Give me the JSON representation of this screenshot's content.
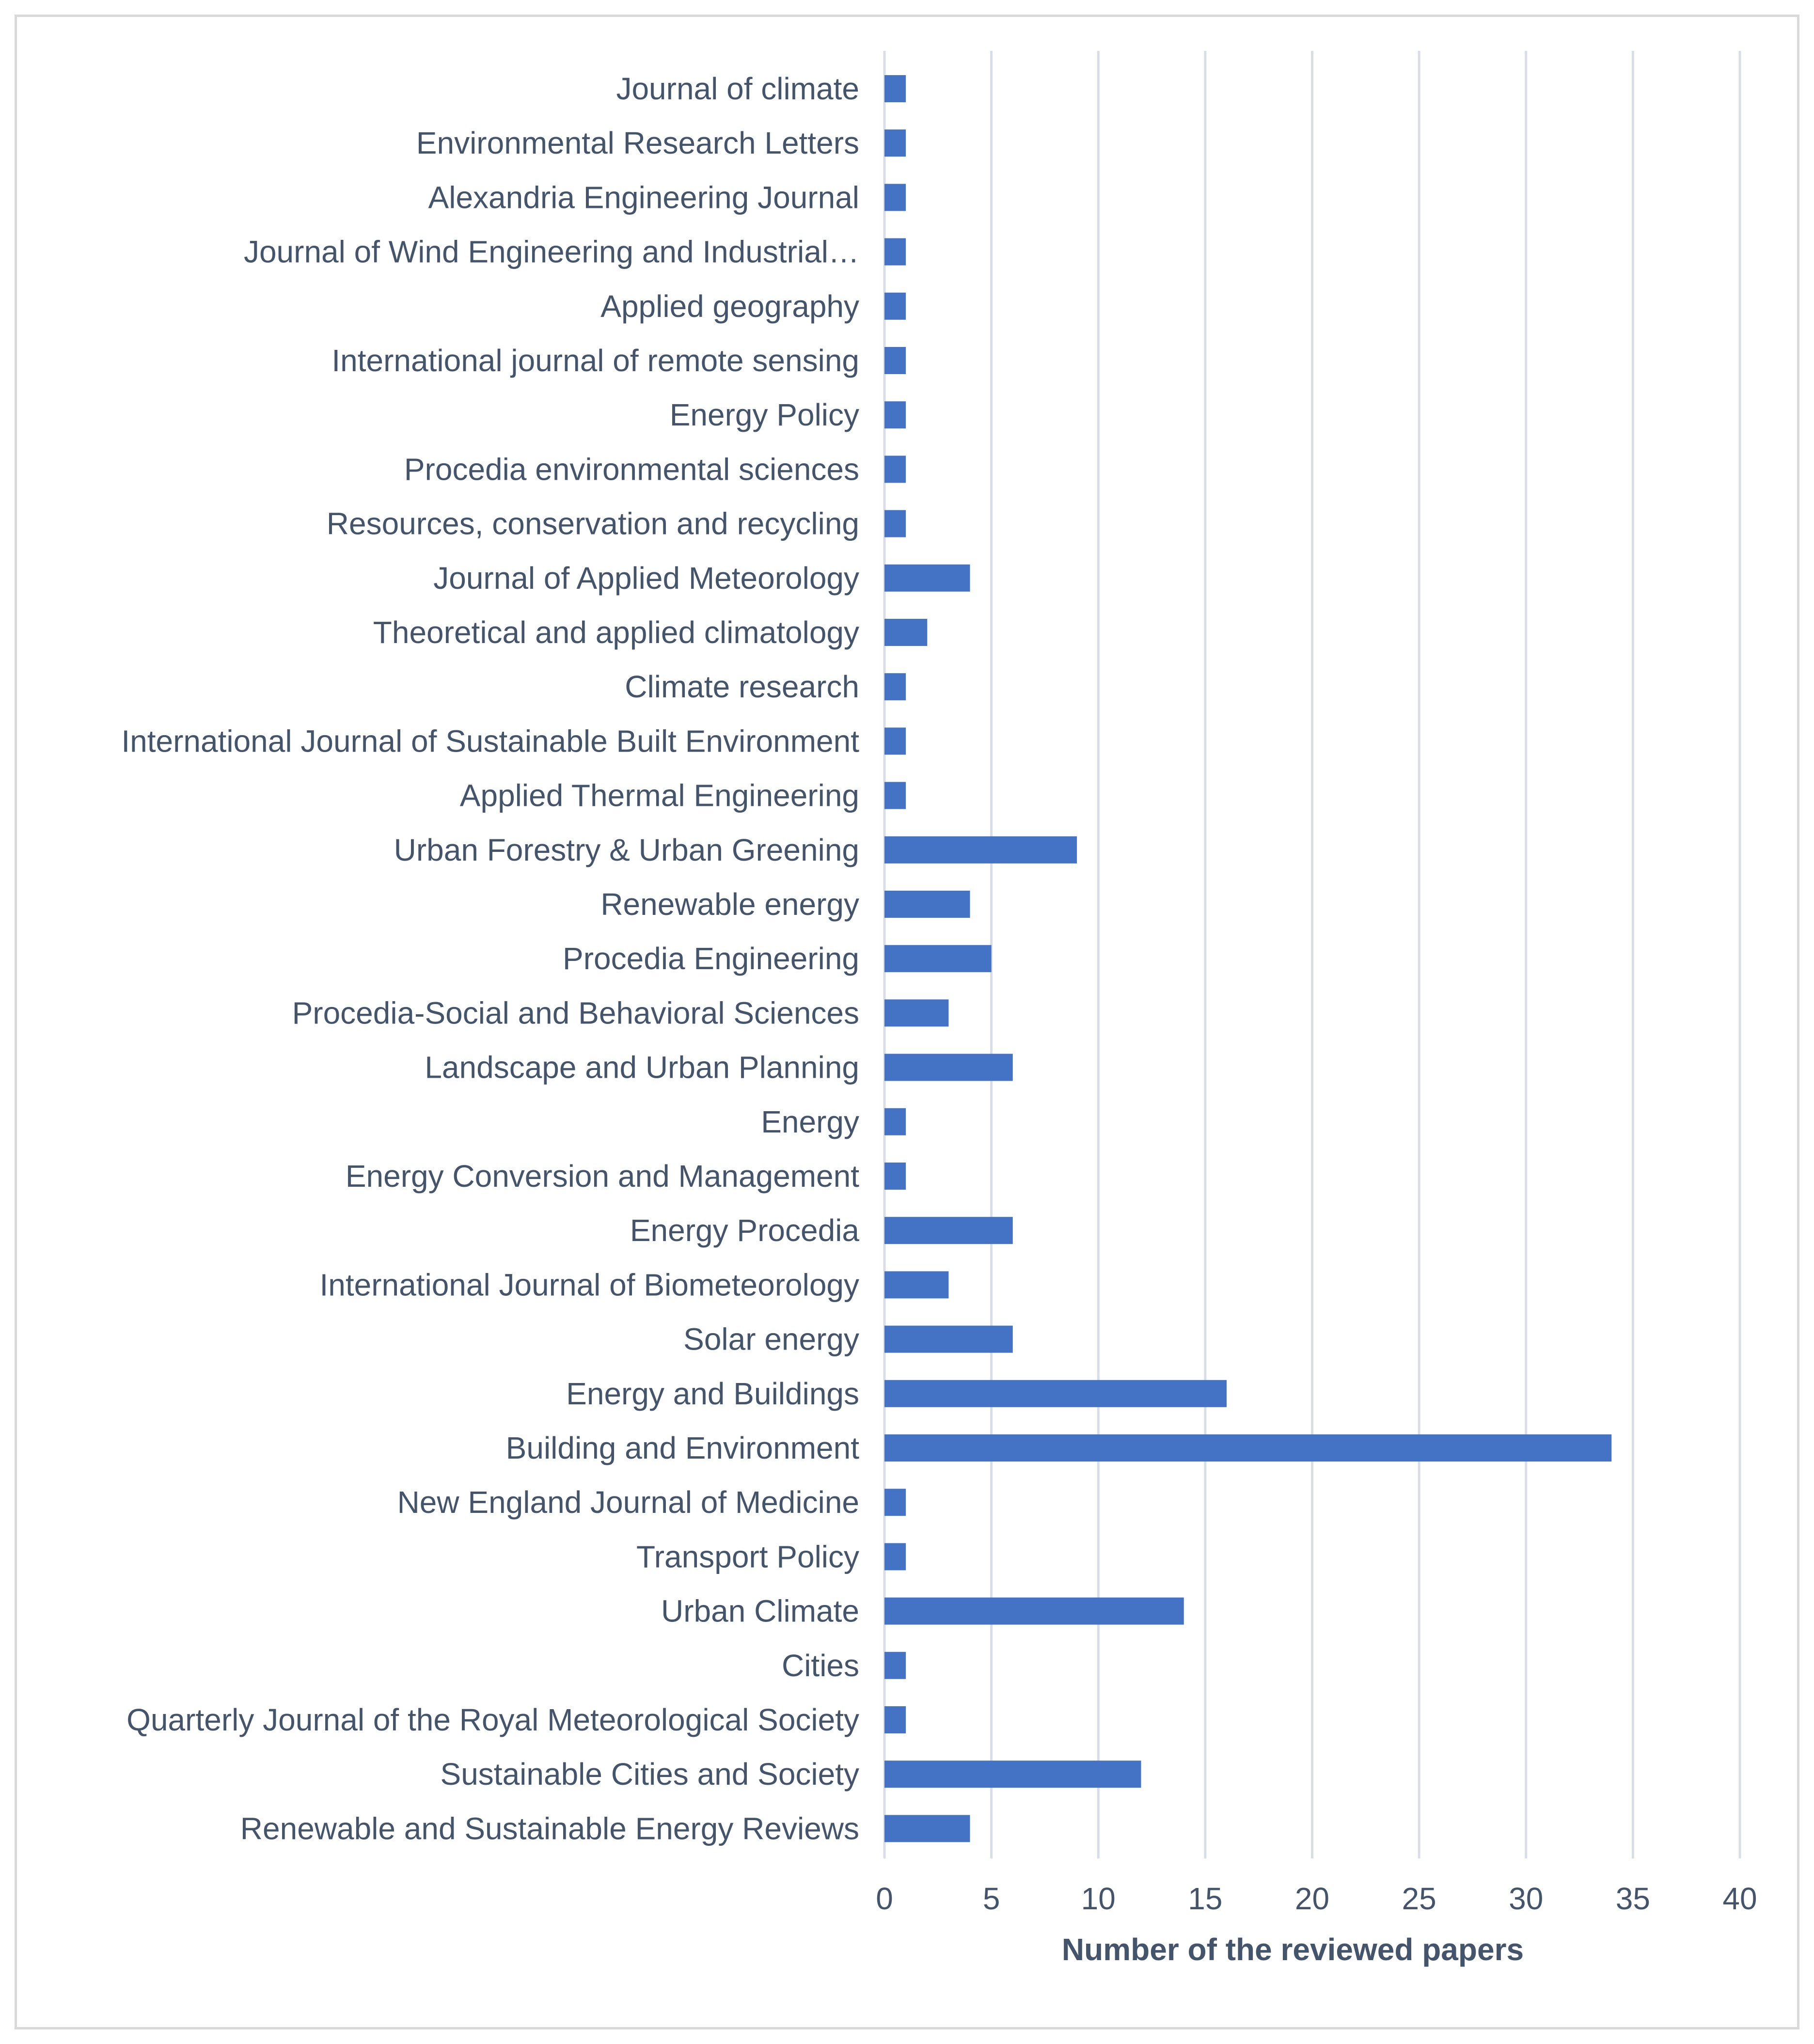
{
  "chart_data": {
    "type": "bar",
    "orientation": "horizontal",
    "title": "",
    "xlabel": "Number of the reviewed papers",
    "ylabel": "",
    "xlim": [
      0,
      40
    ],
    "xticks": [
      0,
      5,
      10,
      15,
      20,
      25,
      30,
      35,
      40
    ],
    "grid": true,
    "legend": "none",
    "colors": {
      "bar": "#4472c4",
      "grid": "#d9dde6",
      "text": "#44546a"
    },
    "categories": [
      "Journal of climate",
      "Environmental Research Letters",
      "Alexandria Engineering Journal",
      "Journal of Wind Engineering and Industrial…",
      "Applied geography",
      "International journal of remote sensing",
      "Energy Policy",
      "Procedia environmental sciences",
      "Resources, conservation and recycling",
      "Journal of Applied Meteorology",
      "Theoretical and applied climatology",
      "Climate research",
      "International Journal of Sustainable Built Environment",
      "Applied Thermal Engineering",
      "Urban Forestry & Urban Greening",
      "Renewable energy",
      "Procedia Engineering",
      "Procedia-Social and Behavioral Sciences",
      "Landscape and Urban Planning",
      "Energy",
      "Energy Conversion and Management",
      "Energy Procedia",
      "International Journal of Biometeorology",
      "Solar energy",
      "Energy and Buildings",
      "Building and Environment",
      "New England Journal of Medicine",
      "Transport Policy",
      "Urban Climate",
      "Cities",
      "Quarterly Journal of the Royal Meteorological Society",
      "Sustainable Cities and Society",
      "Renewable and Sustainable Energy Reviews"
    ],
    "values": [
      1,
      1,
      1,
      1,
      1,
      1,
      1,
      1,
      1,
      4,
      2,
      1,
      1,
      1,
      9,
      4,
      5,
      3,
      6,
      1,
      1,
      6,
      3,
      6,
      16,
      34,
      1,
      1,
      14,
      1,
      1,
      12,
      4
    ]
  }
}
